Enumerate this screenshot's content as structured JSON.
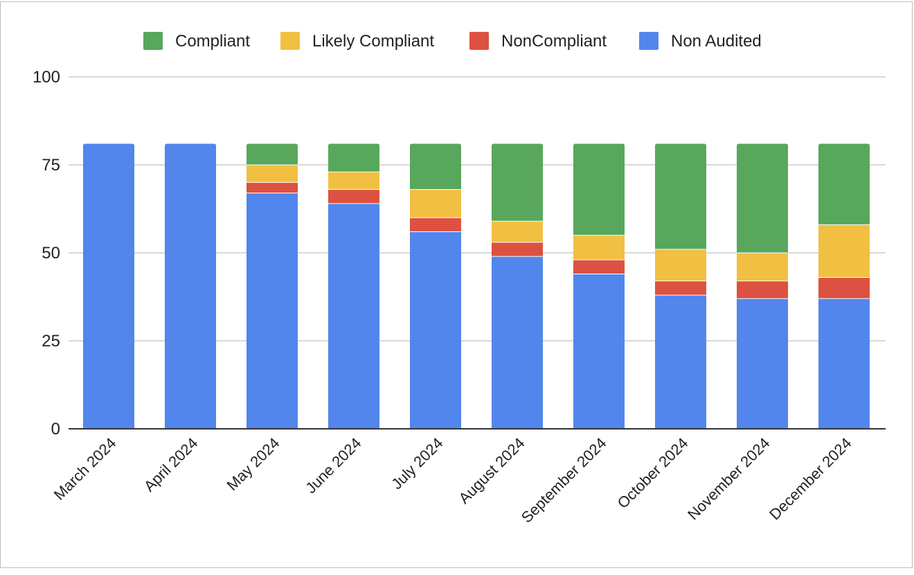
{
  "chart_data": {
    "type": "bar",
    "stacked": true,
    "categories": [
      "March 2024",
      "April 2024",
      "May 2024",
      "June 2024",
      "July 2024",
      "August 2024",
      "September 2024",
      "October 2024",
      "November 2024",
      "December 2024"
    ],
    "series": [
      {
        "name": "Non Audited",
        "color": "#5286EC",
        "values": [
          81,
          81,
          67,
          64,
          56,
          49,
          44,
          38,
          37,
          37
        ]
      },
      {
        "name": "NonCompliant",
        "color": "#DD5141",
        "values": [
          0,
          0,
          3,
          4,
          4,
          4,
          4,
          4,
          5,
          6
        ]
      },
      {
        "name": "Likely Compliant",
        "color": "#F1BF42",
        "values": [
          0,
          0,
          5,
          5,
          8,
          6,
          7,
          9,
          8,
          15
        ]
      },
      {
        "name": "Compliant",
        "color": "#58A75D",
        "values": [
          0,
          0,
          6,
          8,
          13,
          22,
          26,
          30,
          31,
          23
        ]
      }
    ],
    "legend_order": [
      "Compliant",
      "Likely Compliant",
      "NonCompliant",
      "Non Audited"
    ],
    "legend_position": "top",
    "ylim": [
      0,
      100
    ],
    "yticks": [
      "0",
      "25",
      "50",
      "75",
      "100"
    ],
    "grid": true,
    "title": "",
    "xlabel": "",
    "ylabel": ""
  }
}
